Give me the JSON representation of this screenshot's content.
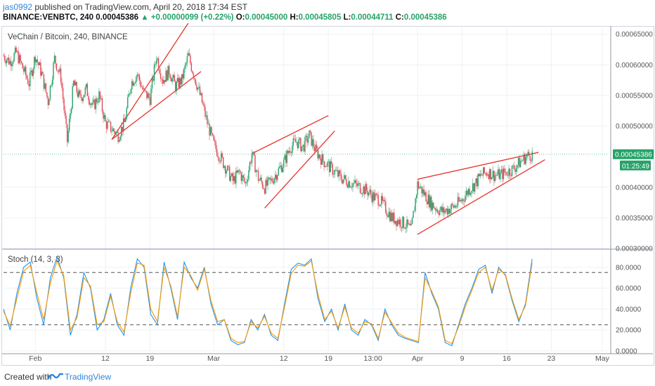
{
  "header": {
    "user": "jas0992",
    "published_text": " published on TradingView.com, April 20, 2018 17:34 EST",
    "symbol": "BINANCE:VENBTC, 240",
    "last": "0.00045386",
    "change": "+0.00000099 (+0.22%)",
    "o_label": "O:",
    "o_value": "0.00045000",
    "h_label": "H:",
    "h_value": "0.00045805",
    "l_label": "L:",
    "l_value": "0.00044711",
    "c_label": "C:",
    "c_value": "0.00045386"
  },
  "chart_data": [
    {
      "type": "candlestick",
      "title": "VeChain / Bitcoin, 240, BINANCE",
      "y_ticks": [
        "0.00065000",
        "0.00060000",
        "0.00055000",
        "0.00050000",
        "0.00040000",
        "0.00035000",
        "0.00030000"
      ],
      "y_tick_values": [
        0.00065,
        0.0006,
        0.00055,
        0.0005,
        0.0004,
        0.00035,
        0.0003
      ],
      "ylim": [
        0.0003,
        0.00066
      ],
      "price_label": "0.00045386",
      "price_value": 0.00045386,
      "countdown_label": "01:25:49",
      "x_ticks": [
        "Feb",
        "12",
        "19",
        "Mar",
        "12",
        "19",
        "13:00",
        "Apr",
        "9",
        "16",
        "23",
        "May"
      ],
      "x_tick_dates": [
        "2018-02-01",
        "2018-02-12",
        "2018-02-19",
        "2018-03-01",
        "2018-03-12",
        "2018-03-19",
        "2018-03-26",
        "2018-04-02",
        "2018-04-09",
        "2018-04-16",
        "2018-04-23",
        "2018-05-01"
      ],
      "xlim": [
        "2018-01-27",
        "2018-05-02"
      ],
      "close_path": [
        [
          "2018-01-27",
          0.000615
        ],
        [
          "2018-01-28",
          0.000605
        ],
        [
          "2018-01-29",
          0.00062
        ],
        [
          "2018-01-30",
          0.000595
        ],
        [
          "2018-01-31",
          0.00057
        ],
        [
          "2018-02-01",
          0.000615
        ],
        [
          "2018-02-02",
          0.000585
        ],
        [
          "2018-02-03",
          0.00054
        ],
        [
          "2018-02-04",
          0.00061
        ],
        [
          "2018-02-05",
          0.00058
        ],
        [
          "2018-02-06",
          0.000475
        ],
        [
          "2018-02-07",
          0.00057
        ],
        [
          "2018-02-08",
          0.000545
        ],
        [
          "2018-02-09",
          0.00056
        ],
        [
          "2018-02-10",
          0.00053
        ],
        [
          "2018-02-11",
          0.00055
        ],
        [
          "2018-02-12",
          0.000505
        ],
        [
          "2018-02-13",
          0.000495
        ],
        [
          "2018-02-14",
          0.000485
        ],
        [
          "2018-02-15",
          0.000505
        ],
        [
          "2018-02-16",
          0.00057
        ],
        [
          "2018-02-17",
          0.000585
        ],
        [
          "2018-02-18",
          0.000555
        ],
        [
          "2018-02-19",
          0.000545
        ],
        [
          "2018-02-20",
          0.000615
        ],
        [
          "2018-02-21",
          0.000575
        ],
        [
          "2018-02-22",
          0.00059
        ],
        [
          "2018-02-23",
          0.000565
        ],
        [
          "2018-02-24",
          0.000575
        ],
        [
          "2018-02-25",
          0.000615
        ],
        [
          "2018-02-26",
          0.00058
        ],
        [
          "2018-02-27",
          0.000545
        ],
        [
          "2018-02-28",
          0.000505
        ],
        [
          "2018-03-01",
          0.00047
        ],
        [
          "2018-03-02",
          0.00045
        ],
        [
          "2018-03-03",
          0.00043
        ],
        [
          "2018-03-04",
          0.00041
        ],
        [
          "2018-03-05",
          0.000425
        ],
        [
          "2018-03-06",
          0.000405
        ],
        [
          "2018-03-07",
          0.000455
        ],
        [
          "2018-03-08",
          0.000415
        ],
        [
          "2018-03-09",
          0.0004
        ],
        [
          "2018-03-10",
          0.00041
        ],
        [
          "2018-03-11",
          0.000425
        ],
        [
          "2018-03-12",
          0.00044
        ],
        [
          "2018-03-13",
          0.000465
        ],
        [
          "2018-03-14",
          0.000475
        ],
        [
          "2018-03-15",
          0.000465
        ],
        [
          "2018-03-16",
          0.000485
        ],
        [
          "2018-03-17",
          0.00046
        ],
        [
          "2018-03-18",
          0.000445
        ],
        [
          "2018-03-19",
          0.000435
        ],
        [
          "2018-03-20",
          0.000425
        ],
        [
          "2018-03-21",
          0.000415
        ],
        [
          "2018-03-22",
          0.00041
        ],
        [
          "2018-03-23",
          0.000405
        ],
        [
          "2018-03-24",
          0.0004
        ],
        [
          "2018-03-25",
          0.000395
        ],
        [
          "2018-03-26",
          0.000385
        ],
        [
          "2018-03-27",
          0.00038
        ],
        [
          "2018-03-28",
          0.000365
        ],
        [
          "2018-03-29",
          0.00035
        ],
        [
          "2018-03-30",
          0.000345
        ],
        [
          "2018-03-31",
          0.00034
        ],
        [
          "2018-04-01",
          0.00033
        ],
        [
          "2018-04-02",
          0.000405
        ],
        [
          "2018-04-03",
          0.00039
        ],
        [
          "2018-04-04",
          0.000375
        ],
        [
          "2018-04-05",
          0.000365
        ],
        [
          "2018-04-06",
          0.00036
        ],
        [
          "2018-04-07",
          0.000365
        ],
        [
          "2018-04-08",
          0.00037
        ],
        [
          "2018-04-09",
          0.00038
        ],
        [
          "2018-04-10",
          0.000395
        ],
        [
          "2018-04-11",
          0.000405
        ],
        [
          "2018-04-12",
          0.00042
        ],
        [
          "2018-04-13",
          0.000425
        ],
        [
          "2018-04-14",
          0.00042
        ],
        [
          "2018-04-15",
          0.00042
        ],
        [
          "2018-04-16",
          0.000425
        ],
        [
          "2018-04-17",
          0.00043
        ],
        [
          "2018-04-18",
          0.00044
        ],
        [
          "2018-04-19",
          0.00045
        ],
        [
          "2018-04-20",
          0.00045386
        ]
      ],
      "trendlines": [
        {
          "from": [
            "2018-02-13",
            0.000478
          ],
          "to": [
            "2018-02-25",
            0.000668
          ]
        },
        {
          "from": [
            "2018-02-13",
            0.000478
          ],
          "to": [
            "2018-02-27",
            0.000589
          ]
        },
        {
          "from": [
            "2018-03-07",
            0.000455
          ],
          "to": [
            "2018-03-19",
            0.000517
          ]
        },
        {
          "from": [
            "2018-03-09",
            0.000366
          ],
          "to": [
            "2018-03-20",
            0.000492
          ]
        },
        {
          "from": [
            "2018-04-02",
            0.000413
          ],
          "to": [
            "2018-04-21",
            0.000457
          ]
        },
        {
          "from": [
            "2018-04-02",
            0.000323
          ],
          "to": [
            "2018-04-22",
            0.000445
          ]
        }
      ]
    },
    {
      "type": "line",
      "title": "Stoch (14, 3, 3)",
      "y_ticks": [
        "80.0000",
        "60.0000",
        "40.0000",
        "20.0000",
        "0.0000"
      ],
      "y_tick_values": [
        80,
        60,
        40,
        20,
        0
      ],
      "ylim": [
        0,
        96
      ],
      "band_upper": 75,
      "band_lower": 25,
      "series": [
        {
          "color": "#2196f3",
          "values": [
            40,
            20,
            55,
            80,
            85,
            50,
            25,
            70,
            90,
            70,
            15,
            35,
            75,
            60,
            20,
            30,
            55,
            25,
            15,
            60,
            88,
            80,
            35,
            25,
            85,
            60,
            30,
            85,
            70,
            60,
            80,
            45,
            25,
            30,
            10,
            6,
            8,
            30,
            20,
            35,
            15,
            10,
            45,
            78,
            84,
            82,
            88,
            50,
            28,
            40,
            20,
            45,
            20,
            15,
            30,
            25,
            10,
            40,
            25,
            15,
            12,
            10,
            8,
            75,
            55,
            40,
            8,
            5,
            25,
            45,
            60,
            78,
            82,
            55,
            80,
            72,
            48,
            28,
            45,
            88
          ]
        },
        {
          "color": "#ff9800",
          "values": [
            38,
            24,
            50,
            76,
            82,
            55,
            30,
            65,
            86,
            72,
            20,
            32,
            70,
            62,
            25,
            28,
            52,
            28,
            18,
            55,
            84,
            82,
            40,
            28,
            80,
            62,
            33,
            80,
            72,
            58,
            78,
            48,
            28,
            30,
            12,
            8,
            9,
            28,
            22,
            33,
            17,
            12,
            42,
            74,
            82,
            81,
            86,
            54,
            30,
            38,
            22,
            42,
            22,
            17,
            28,
            26,
            12,
            37,
            27,
            17,
            13,
            11,
            9,
            70,
            57,
            42,
            10,
            7,
            23,
            42,
            58,
            75,
            80,
            58,
            78,
            73,
            50,
            30,
            43,
            84
          ]
        }
      ]
    }
  ],
  "footer": {
    "created_with": "Created with",
    "brand": "TradingView"
  },
  "colors": {
    "up": "#26a269",
    "down": "#e04c5a",
    "trend": "#e8322b",
    "stoch_k": "#2196f3",
    "stoch_d": "#ff9800",
    "accent": "#2e86de"
  }
}
